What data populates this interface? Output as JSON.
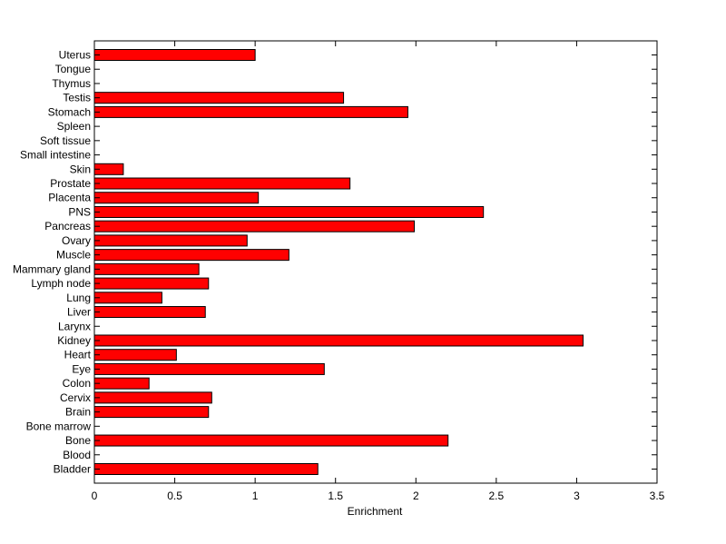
{
  "chart_data": {
    "type": "bar",
    "orientation": "horizontal",
    "categories": [
      "Bladder",
      "Blood",
      "Bone",
      "Bone marrow",
      "Brain",
      "Cervix",
      "Colon",
      "Eye",
      "Heart",
      "Kidney",
      "Larynx",
      "Liver",
      "Lung",
      "Lymph node",
      "Mammary gland",
      "Muscle",
      "Ovary",
      "Pancreas",
      "PNS",
      "Placenta",
      "Prostate",
      "Skin",
      "Small intestine",
      "Soft tissue",
      "Spleen",
      "Stomach",
      "Testis",
      "Thymus",
      "Tongue",
      "Uterus"
    ],
    "values": [
      1.39,
      0,
      2.2,
      0,
      0.71,
      0.73,
      0.34,
      1.43,
      0.51,
      3.04,
      0,
      0.69,
      0.42,
      0.71,
      0.65,
      1.21,
      0.95,
      1.99,
      2.42,
      1.02,
      1.59,
      0.18,
      0,
      0,
      0,
      1.95,
      1.55,
      0,
      0,
      1.0
    ],
    "xlabel": "Enrichment",
    "ylabel": "",
    "title": "",
    "xlim": [
      0,
      3.5
    ],
    "xticks": [
      0,
      0.5,
      1,
      1.5,
      2,
      2.5,
      3,
      3.5
    ],
    "xtick_labels": [
      "0",
      "0.5",
      "1",
      "1.5",
      "2",
      "2.5",
      "3",
      "3.5"
    ],
    "grid": false,
    "legend": "none",
    "bar_color": "#ff0000",
    "edge_color": "#000000"
  }
}
